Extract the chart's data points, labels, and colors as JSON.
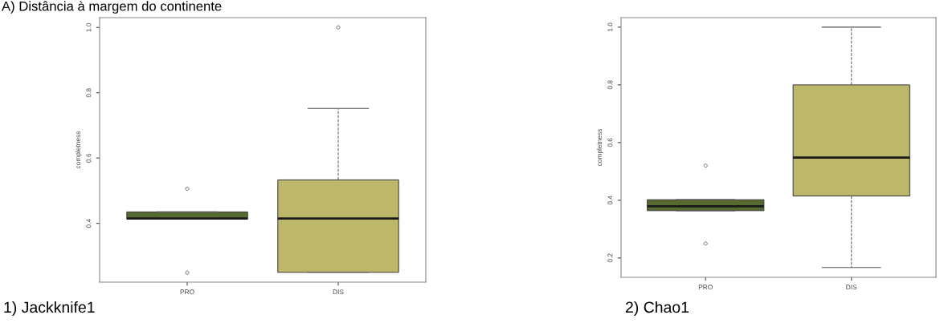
{
  "chart_data": [
    {
      "type": "box",
      "title": "1) Jackknife1",
      "ylabel": "completness",
      "annotations": [
        "A) Distância à margem do continente"
      ],
      "categories": [
        "PRO",
        "DIS"
      ],
      "colors": [
        "#556b2f",
        "#bdb76b"
      ],
      "ylim": [
        0.22,
        1.03
      ],
      "yticks": [
        0.4,
        0.6,
        0.8,
        {
          "value": 1,
          "label": "1.0"
        }
      ],
      "grid": false,
      "boxes": [
        {
          "low": 0.413,
          "q1": 0.413,
          "median": 0.415,
          "q3": 0.435,
          "high": 0.435,
          "outliers": [
            0.506,
            0.249
          ]
        },
        {
          "low": 0.25,
          "q1": 0.25,
          "median": 0.415,
          "q3": 0.533,
          "high": 0.752,
          "outliers": [
            1.0
          ]
        }
      ]
    },
    {
      "type": "box",
      "title": "2) Chao1",
      "ylabel": "completness",
      "categories": [
        "PRO",
        "DIS"
      ],
      "colors": [
        "#556b2f",
        "#bdb76b"
      ],
      "ylim": [
        0.133,
        1.033
      ],
      "yticks": [
        0.2,
        0.4,
        0.6,
        0.8,
        {
          "value": 1,
          "label": "1.0"
        }
      ],
      "grid": false,
      "boxes": [
        {
          "low": 0.364,
          "q1": 0.364,
          "median": 0.379,
          "q3": 0.402,
          "high": 0.402,
          "outliers": [
            0.52,
            0.25
          ]
        },
        {
          "low": 0.167,
          "q1": 0.415,
          "median": 0.548,
          "q3": 0.8,
          "high": 1.0
        }
      ]
    }
  ]
}
